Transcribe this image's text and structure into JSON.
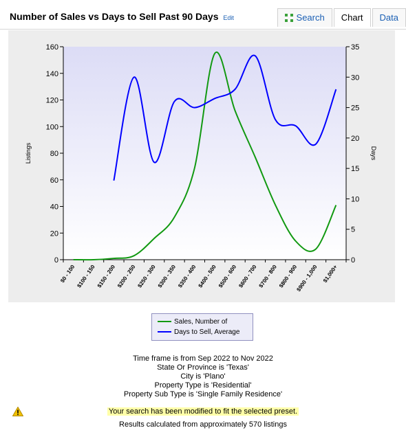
{
  "header": {
    "title": "Number of Sales vs Days to Sell Past 90 Days",
    "edit_label": "Edit",
    "tabs": [
      {
        "label": "Search",
        "icon": "expand-arrows-icon"
      },
      {
        "label": "Chart",
        "active": true
      },
      {
        "label": "Data"
      }
    ]
  },
  "chart_data": {
    "type": "line",
    "categories": [
      "$0 - 100",
      "$100 - 150",
      "$150 - 200",
      "$200 - 250",
      "$250 - 300",
      "$300 - 350",
      "$350 - 400",
      "$400 - 500",
      "$500 - 600",
      "$600 - 700",
      "$700 - 800",
      "$800 - 900",
      "$900 - 1,000",
      "$1,000+"
    ],
    "ylabel": "Listings",
    "y2label": "Days",
    "ylim": [
      0,
      160
    ],
    "y2lim": [
      0,
      35
    ],
    "yticks": [
      0,
      20,
      40,
      60,
      80,
      100,
      120,
      140,
      160
    ],
    "y2ticks": [
      0,
      5,
      10,
      15,
      20,
      25,
      30,
      35
    ],
    "series": [
      {
        "name": "Sales, Number of",
        "axis": "left",
        "color": "#119911",
        "values": [
          0,
          0,
          1,
          3,
          16,
          32,
          69,
          155,
          112,
          77,
          41,
          14,
          8,
          41
        ]
      },
      {
        "name": "Days to Sell, Average",
        "axis": "right",
        "color": "#0000ff",
        "values": [
          null,
          null,
          13,
          30,
          16,
          26,
          25,
          26.5,
          28,
          33.5,
          23,
          22,
          19,
          28
        ]
      }
    ]
  },
  "info": {
    "lines": [
      "Time frame is from Sep 2022 to Nov 2022",
      "State Or Province is 'Texas'",
      "City is 'Plano'",
      "Property Type is 'Residential'",
      "Property Sub Type is 'Single Family Residence'"
    ],
    "notice": "Your search has been modified to fit the selected preset.",
    "footer": "Results calculated from approximately 570 listings"
  }
}
